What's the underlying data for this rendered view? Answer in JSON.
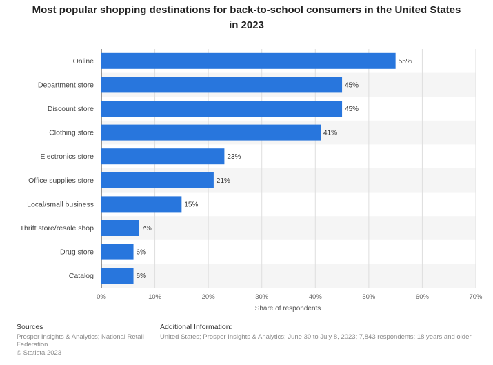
{
  "chart_data": {
    "type": "bar",
    "orientation": "horizontal",
    "title": "Most popular shopping destinations for back-to-school consumers in the United States in 2023",
    "xlabel": "Share of respondents",
    "ylabel": "",
    "categories": [
      "Online",
      "Department store",
      "Discount store",
      "Clothing store",
      "Electronics store",
      "Office supplies store",
      "Local/small business",
      "Thrift store/resale shop",
      "Drug  store",
      "Catalog"
    ],
    "values": [
      55,
      45,
      45,
      41,
      23,
      21,
      15,
      7,
      6,
      6
    ],
    "value_labels": [
      "55%",
      "45%",
      "45%",
      "41%",
      "23%",
      "21%",
      "15%",
      "7%",
      "6%",
      "6%"
    ],
    "xlim": [
      0,
      70
    ],
    "xticks": [
      0,
      10,
      20,
      30,
      40,
      50,
      60,
      70
    ],
    "xtick_labels": [
      "0%",
      "10%",
      "20%",
      "30%",
      "40%",
      "50%",
      "60%",
      "70%"
    ],
    "bar_color": "#2876dd",
    "grid": true
  },
  "footer": {
    "sources_heading": "Sources",
    "sources_text": "Prosper Insights & Analytics; National Retail Federation",
    "copyright": "© Statista 2023",
    "additional_heading": "Additional Information:",
    "additional_text": "United States; Prosper Insights & Analytics; June 30 to July 8, 2023; 7,843 respondents; 18 years and older"
  }
}
